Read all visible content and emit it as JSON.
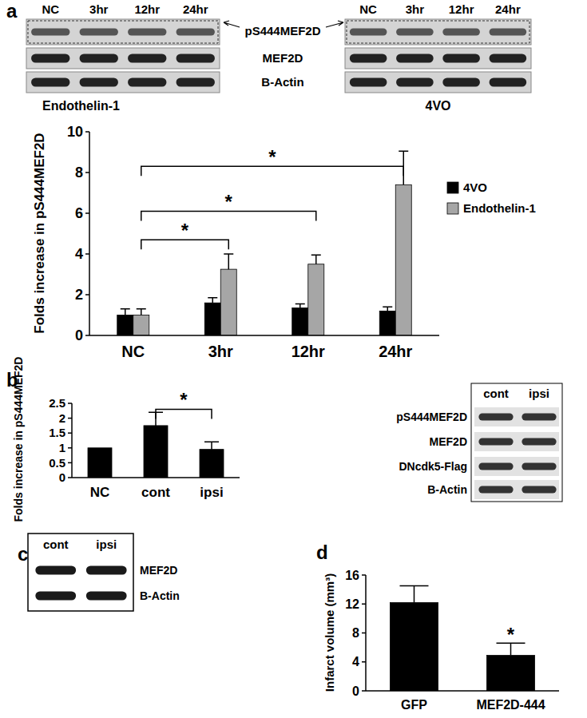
{
  "panels": [
    "a",
    "b",
    "c",
    "d"
  ],
  "blots": {
    "a": {
      "row_labels": [
        "pS444MEF2D",
        "MEF2D",
        "B-Actin"
      ],
      "blots": [
        {
          "caption": "Endothelin-1",
          "lanes": [
            "NC",
            "3hr",
            "12hr",
            "24hr"
          ]
        },
        {
          "caption": "4VO",
          "lanes": [
            "NC",
            "3hr",
            "12hr",
            "24hr"
          ]
        }
      ]
    },
    "b": {
      "lanes": [
        "cont",
        "ipsi"
      ],
      "rows": [
        "pS444MEF2D",
        "MEF2D",
        "DNcdk5-Flag",
        "B-Actin"
      ]
    },
    "c": {
      "lanes": [
        "cont",
        "ipsi"
      ],
      "rows": [
        "MEF2D",
        "B-Actin"
      ]
    }
  },
  "chart_data": [
    {
      "type": "bar",
      "categories": [
        "NC",
        "3hr",
        "12hr",
        "24hr"
      ],
      "y_label": "Folds increase in pS444MEF2D",
      "ylim": [
        0,
        10
      ],
      "yticks": [
        0,
        2,
        4,
        6,
        8,
        10
      ],
      "legend": "right",
      "series": [
        {
          "name": "4VO",
          "color": "#000000",
          "values": [
            1.0,
            1.6,
            1.35,
            1.2
          ],
          "errors": [
            0.3,
            0.25,
            0.2,
            0.2
          ]
        },
        {
          "name": "Endothelin-1",
          "color": "#a6a6a6",
          "values": [
            1.0,
            3.25,
            3.5,
            7.4
          ],
          "errors": [
            0.3,
            0.75,
            0.45,
            1.65
          ]
        }
      ],
      "annotations": [
        {
          "text": "*",
          "from": "NC",
          "to": "3hr",
          "y": 4.7
        },
        {
          "text": "*",
          "from": "NC",
          "to": "12hr",
          "y": 6.1
        },
        {
          "text": "*",
          "from": "NC",
          "to": "24hr",
          "y": 8.3
        }
      ]
    },
    {
      "type": "bar",
      "categories": [
        "NC",
        "cont",
        "ipsi"
      ],
      "y_label": "Folds increase in pS444MEF2D",
      "ylim": [
        0,
        2.5
      ],
      "yticks": [
        0,
        0.5,
        1,
        1.5,
        2,
        2.5
      ],
      "color": "#000000",
      "values": [
        1,
        1.75,
        0.95
      ],
      "errors": [
        null,
        0.45,
        0.25
      ],
      "annotations": [
        {
          "text": "*",
          "from": "cont",
          "to": "ipsi",
          "y": 2.3
        }
      ]
    },
    {
      "type": "bar",
      "categories": [
        "GFP",
        "MEF2D-444"
      ],
      "y_label": "Infarct volume (mm³)",
      "ylim": [
        0,
        16
      ],
      "yticks": [
        0,
        4,
        8,
        12,
        16
      ],
      "color": "#000000",
      "values": [
        12.2,
        4.9
      ],
      "errors": [
        2.3,
        1.7
      ],
      "annotations": [
        {
          "text": "*",
          "on": "MEF2D-444"
        }
      ]
    }
  ]
}
